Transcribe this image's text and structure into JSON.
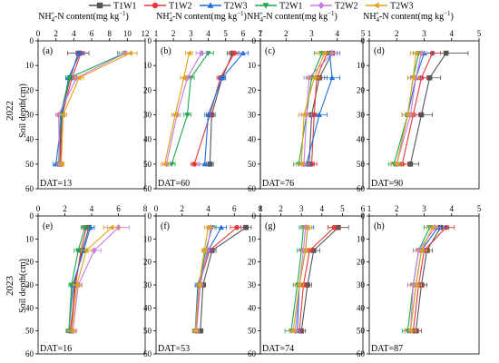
{
  "figure": {
    "ylabel": "Soil depth(cm)",
    "xlabel_text": "NH",
    "xlabel_sub": "4",
    "xlabel_sup": "+",
    "xlabel_mid": "-N content(mg kg",
    "xlabel_exp": "−1",
    "xlabel_end": ")",
    "year_labels": [
      "2022",
      "2023"
    ],
    "legend": [
      {
        "name": "T1W1",
        "color": "#555555",
        "marker": "square"
      },
      {
        "name": "T1W2",
        "color": "#e8393a",
        "marker": "circle"
      },
      {
        "name": "T2W3",
        "color": "#1f6fe0",
        "marker": "triangle-up"
      },
      {
        "name": "T2W1",
        "color": "#1fa84e",
        "marker": "triangle-down"
      },
      {
        "name": "T2W2",
        "color": "#c77be0",
        "marker": "diamond"
      },
      {
        "name": "T2W3",
        "color": "#e3a21a",
        "marker": "triangle-left"
      }
    ]
  },
  "chart_data": [
    {
      "type": "line",
      "panel": "(a)",
      "dat": "DAT=13",
      "xlim": [
        0,
        12
      ],
      "xticks": [
        0,
        2,
        4,
        6,
        8,
        10,
        12
      ],
      "ylim": [
        0,
        60
      ],
      "depth": [
        5,
        15,
        30,
        50
      ],
      "series": [
        {
          "name": "T1W1",
          "x": [
            4.5,
            3.6,
            2.6,
            2.4
          ],
          "err": [
            1.2,
            0.5,
            0.4,
            0.4
          ]
        },
        {
          "name": "T1W2",
          "x": [
            4.8,
            3.8,
            2.7,
            2.5
          ],
          "err": [
            0.4,
            0.4,
            0.3,
            0.3
          ]
        },
        {
          "name": "T2W3",
          "x": [
            4.7,
            3.4,
            2.7,
            2.0
          ],
          "err": [
            0.4,
            0.3,
            0.3,
            0.3
          ]
        },
        {
          "name": "T2W1",
          "x": [
            9.7,
            3.5,
            2.5,
            2.3
          ],
          "err": [
            0.8,
            0.4,
            0.3,
            0.3
          ]
        },
        {
          "name": "T2W2",
          "x": [
            9.8,
            4.3,
            2.3,
            2.4
          ],
          "err": [
            0.7,
            0.4,
            0.3,
            0.3
          ]
        },
        {
          "name": "T2W3",
          "x": [
            10.3,
            4.6,
            2.8,
            2.6
          ],
          "err": [
            0.8,
            0.5,
            0.4,
            0.3
          ]
        }
      ]
    },
    {
      "type": "line",
      "panel": "(b)",
      "dat": "DAT=60",
      "xlim": [
        1,
        7
      ],
      "xticks": [
        1,
        2,
        3,
        4,
        5,
        6,
        7
      ],
      "ylim": [
        0,
        60
      ],
      "depth": [
        5,
        15,
        30,
        50
      ],
      "series": [
        {
          "name": "T1W1",
          "x": [
            5.4,
            4.8,
            4.2,
            4.1
          ],
          "err": [
            0.3,
            0.2,
            0.2,
            0.2
          ]
        },
        {
          "name": "T1W2",
          "x": [
            5.5,
            4.7,
            4.1,
            3.2
          ],
          "err": [
            0.3,
            0.2,
            0.2,
            0.2
          ]
        },
        {
          "name": "T2W3",
          "x": [
            6.0,
            4.8,
            4.0,
            3.8
          ],
          "err": [
            0.3,
            0.2,
            0.2,
            0.3
          ]
        },
        {
          "name": "T2W1",
          "x": [
            4.0,
            3.0,
            2.8,
            1.9
          ],
          "err": [
            0.3,
            0.2,
            0.2,
            0.2
          ]
        },
        {
          "name": "T2W2",
          "x": [
            3.6,
            2.8,
            2.2,
            1.6
          ],
          "err": [
            0.3,
            0.2,
            0.2,
            0.2
          ]
        },
        {
          "name": "T2W3",
          "x": [
            2.9,
            2.6,
            2.1,
            1.5
          ],
          "err": [
            0.2,
            0.2,
            0.2,
            0.2
          ]
        }
      ]
    },
    {
      "type": "line",
      "panel": "(c)",
      "dat": "DAT=76",
      "xlim": [
        1,
        5
      ],
      "xticks": [
        1,
        2,
        3,
        4,
        5
      ],
      "ylim": [
        0,
        60
      ],
      "depth": [
        5,
        15,
        30,
        50
      ],
      "series": [
        {
          "name": "T1W1",
          "x": [
            3.8,
            3.3,
            3.0,
            2.9
          ],
          "err": [
            0.3,
            0.3,
            0.2,
            0.2
          ]
        },
        {
          "name": "T1W2",
          "x": [
            3.6,
            3.2,
            3.1,
            3.0
          ],
          "err": [
            0.3,
            0.2,
            0.2,
            0.2
          ]
        },
        {
          "name": "T2W3",
          "x": [
            3.7,
            3.8,
            3.3,
            2.8
          ],
          "err": [
            0.3,
            0.3,
            0.3,
            0.2
          ]
        },
        {
          "name": "T2W1",
          "x": [
            3.4,
            3.0,
            2.8,
            2.5
          ],
          "err": [
            0.3,
            0.2,
            0.2,
            0.2
          ]
        },
        {
          "name": "T2W2",
          "x": [
            3.8,
            2.9,
            2.8,
            2.7
          ],
          "err": [
            0.3,
            0.2,
            0.2,
            0.2
          ]
        },
        {
          "name": "T2W3",
          "x": [
            3.5,
            3.1,
            2.7,
            2.6
          ],
          "err": [
            0.3,
            0.2,
            0.2,
            0.2
          ]
        }
      ]
    },
    {
      "type": "line",
      "panel": "(d)",
      "dat": "DAT=90",
      "xlim": [
        1,
        5
      ],
      "xticks": [
        1,
        2,
        3,
        4,
        5
      ],
      "ylim": [
        0,
        60
      ],
      "depth": [
        5,
        15,
        30,
        50
      ],
      "series": [
        {
          "name": "T1W1",
          "x": [
            3.8,
            3.2,
            2.9,
            2.5
          ],
          "err": [
            0.8,
            0.4,
            0.4,
            0.3
          ]
        },
        {
          "name": "T1W2",
          "x": [
            3.3,
            2.9,
            2.6,
            2.2
          ],
          "err": [
            0.3,
            0.2,
            0.2,
            0.2
          ]
        },
        {
          "name": "T2W3",
          "x": [
            3.0,
            2.7,
            2.4,
            2.0
          ],
          "err": [
            0.3,
            0.2,
            0.2,
            0.2
          ]
        },
        {
          "name": "T2W1",
          "x": [
            2.8,
            2.6,
            2.4,
            1.9
          ],
          "err": [
            0.2,
            0.2,
            0.2,
            0.2
          ]
        },
        {
          "name": "T2W2",
          "x": [
            2.9,
            2.7,
            2.5,
            2.0
          ],
          "err": [
            0.2,
            0.2,
            0.2,
            0.2
          ]
        },
        {
          "name": "T2W3",
          "x": [
            2.7,
            2.6,
            2.4,
            2.0
          ],
          "err": [
            0.2,
            0.2,
            0.2,
            0.2
          ]
        }
      ]
    },
    {
      "type": "line",
      "panel": "(e)",
      "dat": "DAT=16",
      "xlim": [
        0,
        8
      ],
      "xticks": [
        0,
        2,
        4,
        6,
        8
      ],
      "ylim": [
        0,
        60
      ],
      "depth": [
        5,
        15,
        30,
        50
      ],
      "series": [
        {
          "name": "T1W1",
          "x": [
            3.8,
            3.3,
            2.7,
            2.5
          ],
          "err": [
            0.4,
            0.3,
            0.3,
            0.3
          ]
        },
        {
          "name": "T1W2",
          "x": [
            3.6,
            3.2,
            2.8,
            2.4
          ],
          "err": [
            0.3,
            0.3,
            0.3,
            0.2
          ]
        },
        {
          "name": "T2W3",
          "x": [
            3.9,
            3.4,
            2.6,
            2.3
          ],
          "err": [
            0.3,
            0.3,
            0.2,
            0.2
          ]
        },
        {
          "name": "T2W1",
          "x": [
            3.5,
            3.0,
            2.5,
            2.3
          ],
          "err": [
            0.3,
            0.3,
            0.2,
            0.2
          ]
        },
        {
          "name": "T2W2",
          "x": [
            6.0,
            4.2,
            3.0,
            2.6
          ],
          "err": [
            0.8,
            0.5,
            0.3,
            0.3
          ]
        },
        {
          "name": "T2W3",
          "x": [
            5.5,
            3.6,
            2.9,
            2.5
          ],
          "err": [
            0.6,
            0.4,
            0.3,
            0.3
          ]
        }
      ]
    },
    {
      "type": "line",
      "panel": "(f)",
      "dat": "DAT=53",
      "xlim": [
        0,
        8
      ],
      "xticks": [
        0,
        2,
        4,
        6,
        8
      ],
      "ylim": [
        0,
        60
      ],
      "depth": [
        5,
        15,
        30,
        50
      ],
      "series": [
        {
          "name": "T1W1",
          "x": [
            6.9,
            4.3,
            3.6,
            3.4
          ],
          "err": [
            0.4,
            0.3,
            0.2,
            0.2
          ]
        },
        {
          "name": "T1W2",
          "x": [
            6.2,
            4.1,
            3.3,
            3.1
          ],
          "err": [
            0.5,
            0.3,
            0.2,
            0.2
          ]
        },
        {
          "name": "T2W3",
          "x": [
            5.0,
            4.0,
            3.2,
            3.0
          ],
          "err": [
            0.4,
            0.3,
            0.2,
            0.2
          ]
        },
        {
          "name": "T2W1",
          "x": [
            4.3,
            3.8,
            3.3,
            3.0
          ],
          "err": [
            0.3,
            0.2,
            0.2,
            0.2
          ]
        },
        {
          "name": "T2W2",
          "x": [
            4.2,
            3.9,
            3.4,
            3.1
          ],
          "err": [
            0.3,
            0.2,
            0.2,
            0.2
          ]
        },
        {
          "name": "T2W3",
          "x": [
            4.0,
            3.7,
            3.3,
            3.0
          ],
          "err": [
            0.3,
            0.2,
            0.2,
            0.2
          ]
        }
      ]
    },
    {
      "type": "line",
      "panel": "(g)",
      "dat": "DAT=74",
      "xlim": [
        1,
        6
      ],
      "xticks": [
        1,
        2,
        3,
        4,
        5,
        6
      ],
      "ylim": [
        0,
        60
      ],
      "depth": [
        5,
        15,
        30,
        50
      ],
      "series": [
        {
          "name": "T1W1",
          "x": [
            4.8,
            3.6,
            3.3,
            3.0
          ],
          "err": [
            0.5,
            0.3,
            0.2,
            0.2
          ]
        },
        {
          "name": "T1W2",
          "x": [
            4.6,
            3.4,
            3.1,
            2.9
          ],
          "err": [
            0.3,
            0.2,
            0.2,
            0.2
          ]
        },
        {
          "name": "T2W3",
          "x": [
            3.3,
            3.2,
            2.9,
            2.8
          ],
          "err": [
            0.3,
            0.2,
            0.2,
            0.2
          ]
        },
        {
          "name": "T2W1",
          "x": [
            3.1,
            3.0,
            2.8,
            2.5
          ],
          "err": [
            0.2,
            0.2,
            0.2,
            0.3
          ]
        },
        {
          "name": "T2W2",
          "x": [
            3.2,
            3.1,
            2.9,
            2.7
          ],
          "err": [
            0.2,
            0.2,
            0.2,
            0.2
          ]
        },
        {
          "name": "T2W3",
          "x": [
            3.3,
            3.2,
            2.9,
            2.6
          ],
          "err": [
            0.2,
            0.2,
            0.2,
            0.2
          ]
        }
      ]
    },
    {
      "type": "line",
      "panel": "(h)",
      "dat": "DAT=87",
      "xlim": [
        1,
        5
      ],
      "xticks": [
        1,
        2,
        3,
        4,
        5
      ],
      "ylim": [
        0,
        60
      ],
      "depth": [
        5,
        15,
        30,
        50
      ],
      "series": [
        {
          "name": "T1W1",
          "x": [
            3.6,
            3.1,
            2.9,
            2.7
          ],
          "err": [
            0.3,
            0.2,
            0.2,
            0.2
          ]
        },
        {
          "name": "T1W2",
          "x": [
            3.8,
            3.0,
            2.8,
            2.6
          ],
          "err": [
            0.3,
            0.2,
            0.2,
            0.2
          ]
        },
        {
          "name": "T2W3",
          "x": [
            3.5,
            2.9,
            2.7,
            2.5
          ],
          "err": [
            0.3,
            0.2,
            0.2,
            0.2
          ]
        },
        {
          "name": "T2W1",
          "x": [
            3.2,
            2.8,
            2.6,
            2.4
          ],
          "err": [
            0.2,
            0.2,
            0.2,
            0.2
          ]
        },
        {
          "name": "T2W2",
          "x": [
            3.4,
            2.8,
            2.6,
            2.5
          ],
          "err": [
            0.2,
            0.2,
            0.2,
            0.2
          ]
        },
        {
          "name": "T2W3",
          "x": [
            3.3,
            2.9,
            2.7,
            2.5
          ],
          "err": [
            0.2,
            0.2,
            0.2,
            0.2
          ]
        }
      ]
    }
  ]
}
